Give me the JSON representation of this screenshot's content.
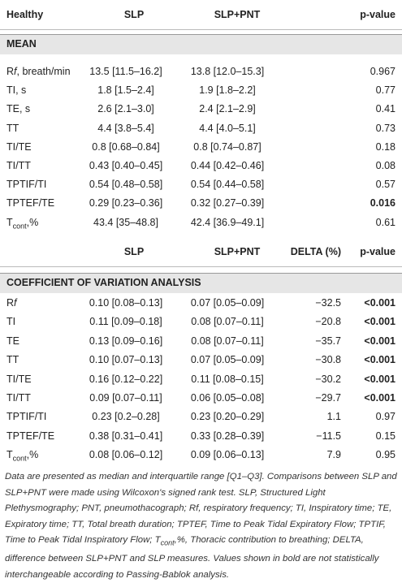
{
  "tables": [
    {
      "headers": [
        "Healthy",
        "SLP",
        "SLP+PNT",
        "p-value"
      ],
      "section": "MEAN",
      "rows": [
        {
          "label": {
            "main": "R",
            "italic": "f",
            "rest": ", breath/min"
          },
          "cells": [
            "13.5 [11.5–16.2]",
            "13.8 [12.0–15.3]",
            "0.967"
          ]
        },
        {
          "label": "TI, s",
          "cells": [
            "1.8 [1.5–2.4]",
            "1.9 [1.8–2.2]",
            "0.77"
          ]
        },
        {
          "label": "TE, s",
          "cells": [
            "2.6 [2.1–3.0]",
            "2.4 [2.1–2.9]",
            "0.41"
          ]
        },
        {
          "label": "TT",
          "cells": [
            "4.4 [3.8–5.4]",
            "4.4 [4.0–5.1]",
            "0.73"
          ]
        },
        {
          "label": "TI/TE",
          "cells": [
            "0.8 [0.68–0.84]",
            "0.8 [0.74–0.87]",
            "0.18"
          ]
        },
        {
          "label": "TI/TT",
          "cells": [
            "0.43 [0.40–0.45]",
            "0.44 [0.42–0.46]",
            "0.08"
          ]
        },
        {
          "label": "TPTIF/TI",
          "cells": [
            "0.54 [0.48–0.58]",
            "0.54 [0.44–0.58]",
            "0.57"
          ]
        },
        {
          "label": "TPTEF/TE",
          "cells": [
            "0.29 [0.23–0.36]",
            "0.32 [0.27–0.39]",
            "0.016"
          ],
          "bold": true
        },
        {
          "label": {
            "main": "T",
            "sub": "cont",
            "rest": ",%"
          },
          "cells": [
            "43.4 [35–48.8]",
            "42.4 [36.9–49.1]",
            "0.61"
          ]
        }
      ]
    },
    {
      "headers": [
        "SLP",
        "SLP+PNT",
        "DELTA (%)",
        "p-value"
      ],
      "section": "COEFFICIENT OF VARIATION ANALYSIS",
      "rows": [
        {
          "label": {
            "main": "R",
            "italic": "f"
          },
          "cells": [
            "0.10 [0.08–0.13]",
            "0.07 [0.05–0.09]",
            "−32.5",
            "<0.001"
          ],
          "bold": true
        },
        {
          "label": "TI",
          "cells": [
            "0.11 [0.09–0.18]",
            "0.08 [0.07–0.11]",
            "−20.8",
            "<0.001"
          ],
          "bold": true
        },
        {
          "label": "TE",
          "cells": [
            "0.13 [0.09–0.16]",
            "0.08 [0.07–0.11]",
            "−35.7",
            "<0.001"
          ],
          "bold": true
        },
        {
          "label": "TT",
          "cells": [
            "0.10 [0.07–0.13]",
            "0.07 [0.05–0.09]",
            "−30.8",
            "<0.001"
          ],
          "bold": true
        },
        {
          "label": "TI/TE",
          "cells": [
            "0.16 [0.12–0.22]",
            "0.11 [0.08–0.15]",
            "−30.2",
            "<0.001"
          ],
          "bold": true
        },
        {
          "label": "TI/TT",
          "cells": [
            "0.09 [0.07–0.11]",
            "0.06 [0.05–0.08]",
            "−29.7",
            "<0.001"
          ],
          "bold": true
        },
        {
          "label": "TPTIF/TI",
          "cells": [
            "0.23 [0.2–0.28]",
            "0.23 [0.20–0.29]",
            "1.1",
            "0.97"
          ]
        },
        {
          "label": "TPTEF/TE",
          "cells": [
            "0.38 [0.31–0.41]",
            "0.33 [0.28–0.39]",
            "−11.5",
            "0.15"
          ]
        },
        {
          "label": {
            "main": "T",
            "sub": "cont",
            "rest": ",%"
          },
          "cells": [
            "0.08 [0.06–0.12]",
            "0.09 [0.06–0.13]",
            "7.9",
            "0.95"
          ]
        }
      ]
    }
  ],
  "footnote": {
    "before": "Data are presented as median and interquartile range [Q1–Q3]. Comparisons between SLP and SLP+PNT were made using Wilcoxon's signed rank test. SLP, Structured Light Plethysmography; PNT, pneumothacograph; Rf, respiratory frequency; TI, Inspiratory time; TE, Expiratory time; TT, Total breath duration; TPTEF, Time to Peak Tidal Expiratory Flow; TPTIF, Time to Peak Tidal Inspiratory Flow; T",
    "sub": "cont",
    "after": ",%, Thoracic contribution to breathing; DELTA, difference between SLP+PNT and SLP measures. Values shown in bold are not statistically interchangeable according to Passing-Bablok analysis."
  }
}
